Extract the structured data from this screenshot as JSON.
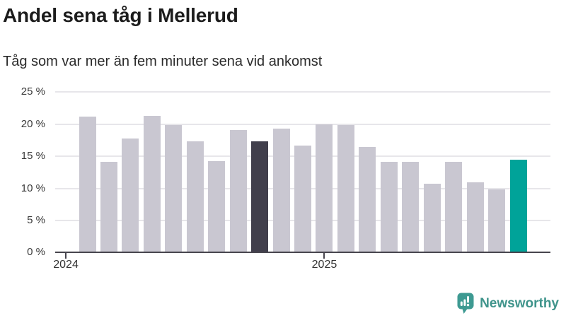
{
  "header": {
    "title": "Andel sena tåg i Mellerud",
    "subtitle": "Tåg som var mer än fem minuter sena vid ankomst"
  },
  "colors": {
    "base_bar": "#c9c7d1",
    "dark_bar": "#413f4c",
    "accent_bar": "#00a399",
    "axis": "#47454e",
    "gridline": "#e7e6ea",
    "text_primary": "#1c1c1c",
    "text_secondary": "#2b2b2b",
    "tick_text": "#3a3a3a",
    "brand_teal": "#3f948b",
    "brand_icon_teal": "#3e9a92"
  },
  "chart_data": {
    "type": "bar",
    "title": "Andel sena tåg i Mellerud",
    "subtitle": "Tåg som var mer än fem minuter sena vid ankomst",
    "x": [
      "2024-02",
      "2024-03",
      "2024-04",
      "2024-05",
      "2024-06",
      "2024-07",
      "2024-08",
      "2024-09",
      "2024-10",
      "2024-11",
      "2024-12",
      "2025-01",
      "2025-02",
      "2025-03",
      "2025-04",
      "2025-05",
      "2025-06",
      "2025-07",
      "2025-08",
      "2025-09",
      "2025-10"
    ],
    "values": [
      20.9,
      13.9,
      17.6,
      21.0,
      19.6,
      17.1,
      14.0,
      18.9,
      17.1,
      19.1,
      16.5,
      19.7,
      19.6,
      16.2,
      13.9,
      13.9,
      10.5,
      13.9,
      10.8,
      9.7,
      14.3
    ],
    "unit": "%",
    "ylim": [
      0,
      25
    ],
    "grid": true,
    "legend": "none",
    "yticks": [
      {
        "value": 25,
        "label": "25 %"
      },
      {
        "value": 20,
        "label": "20 %"
      },
      {
        "value": 15,
        "label": "15 %"
      },
      {
        "value": 10,
        "label": "10 %"
      },
      {
        "value": 5,
        "label": "5 %"
      },
      {
        "value": 0,
        "label": "0 %"
      }
    ],
    "xticks": [
      {
        "label": "2024",
        "month_index": -1
      },
      {
        "label": "2025",
        "month_index": 11
      }
    ],
    "highlight_dark_index": 8,
    "highlight_accent_index": 20
  },
  "footer": {
    "brand": "Newsworthy",
    "logo_icon": "newsworthy-speech-bubble-barchart-icon"
  }
}
